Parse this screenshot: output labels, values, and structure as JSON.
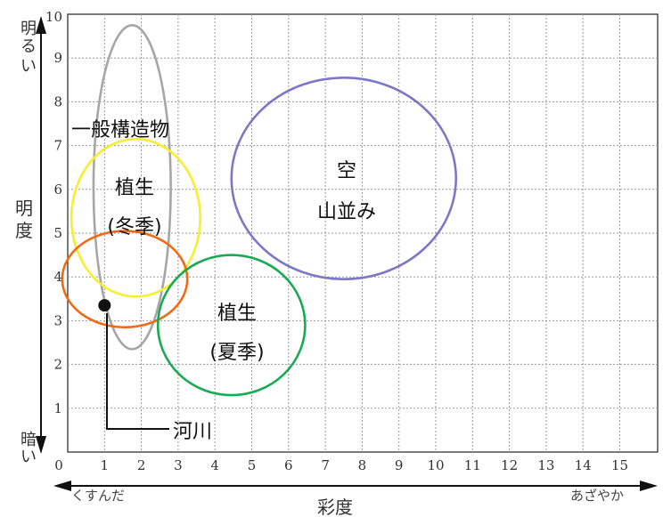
{
  "chart_data": {
    "type": "scatter",
    "xlabel": "彩度",
    "ylabel": "明度",
    "xlim": [
      0,
      16
    ],
    "ylim": [
      0,
      10
    ],
    "grid": true,
    "x_ticks": [
      "0",
      "1",
      "2",
      "3",
      "4",
      "5",
      "6",
      "7",
      "8",
      "9",
      "10",
      "11",
      "12",
      "13",
      "14",
      "15"
    ],
    "y_ticks": [
      "1",
      "2",
      "3",
      "4",
      "5",
      "6",
      "7",
      "8",
      "9",
      "10"
    ],
    "x_low_label": "くすんだ",
    "x_high_label": "あざやか",
    "y_high_label": [
      "明",
      "る",
      "い"
    ],
    "y_low_label": [
      "暗",
      "い"
    ],
    "ylabel_chars": [
      "明",
      "度"
    ],
    "regions": [
      {
        "id": "general-structures",
        "label_lines": [
          "一般構造物"
        ],
        "cx": 1.75,
        "cy": 6.05,
        "rx": 1.05,
        "ry": 3.7,
        "color": "#a6a6a6"
      },
      {
        "id": "sky-mountains",
        "label_lines": [
          "空",
          "山並み"
        ],
        "cx": 7.5,
        "cy": 6.25,
        "rx": 3.05,
        "ry": 2.3,
        "color": "#7b78c8"
      },
      {
        "id": "vegetation-winter",
        "label_lines": [
          "植生",
          "(冬季)"
        ],
        "cx": 1.85,
        "cy": 5.35,
        "rx": 1.75,
        "ry": 1.8,
        "color": "#f7ee2e"
      },
      {
        "id": "river",
        "label_lines": [],
        "cx": 1.55,
        "cy": 3.95,
        "rx": 1.7,
        "ry": 1.1,
        "color": "#f06a14"
      },
      {
        "id": "vegetation-summer",
        "label_lines": [
          "植生",
          "(夏季)"
        ],
        "cx": 4.45,
        "cy": 2.9,
        "rx": 2.0,
        "ry": 1.6,
        "color": "#1aaa55"
      }
    ],
    "points": [
      {
        "id": "river-point",
        "label": "河川",
        "x": 1.0,
        "y": 3.35
      }
    ]
  }
}
